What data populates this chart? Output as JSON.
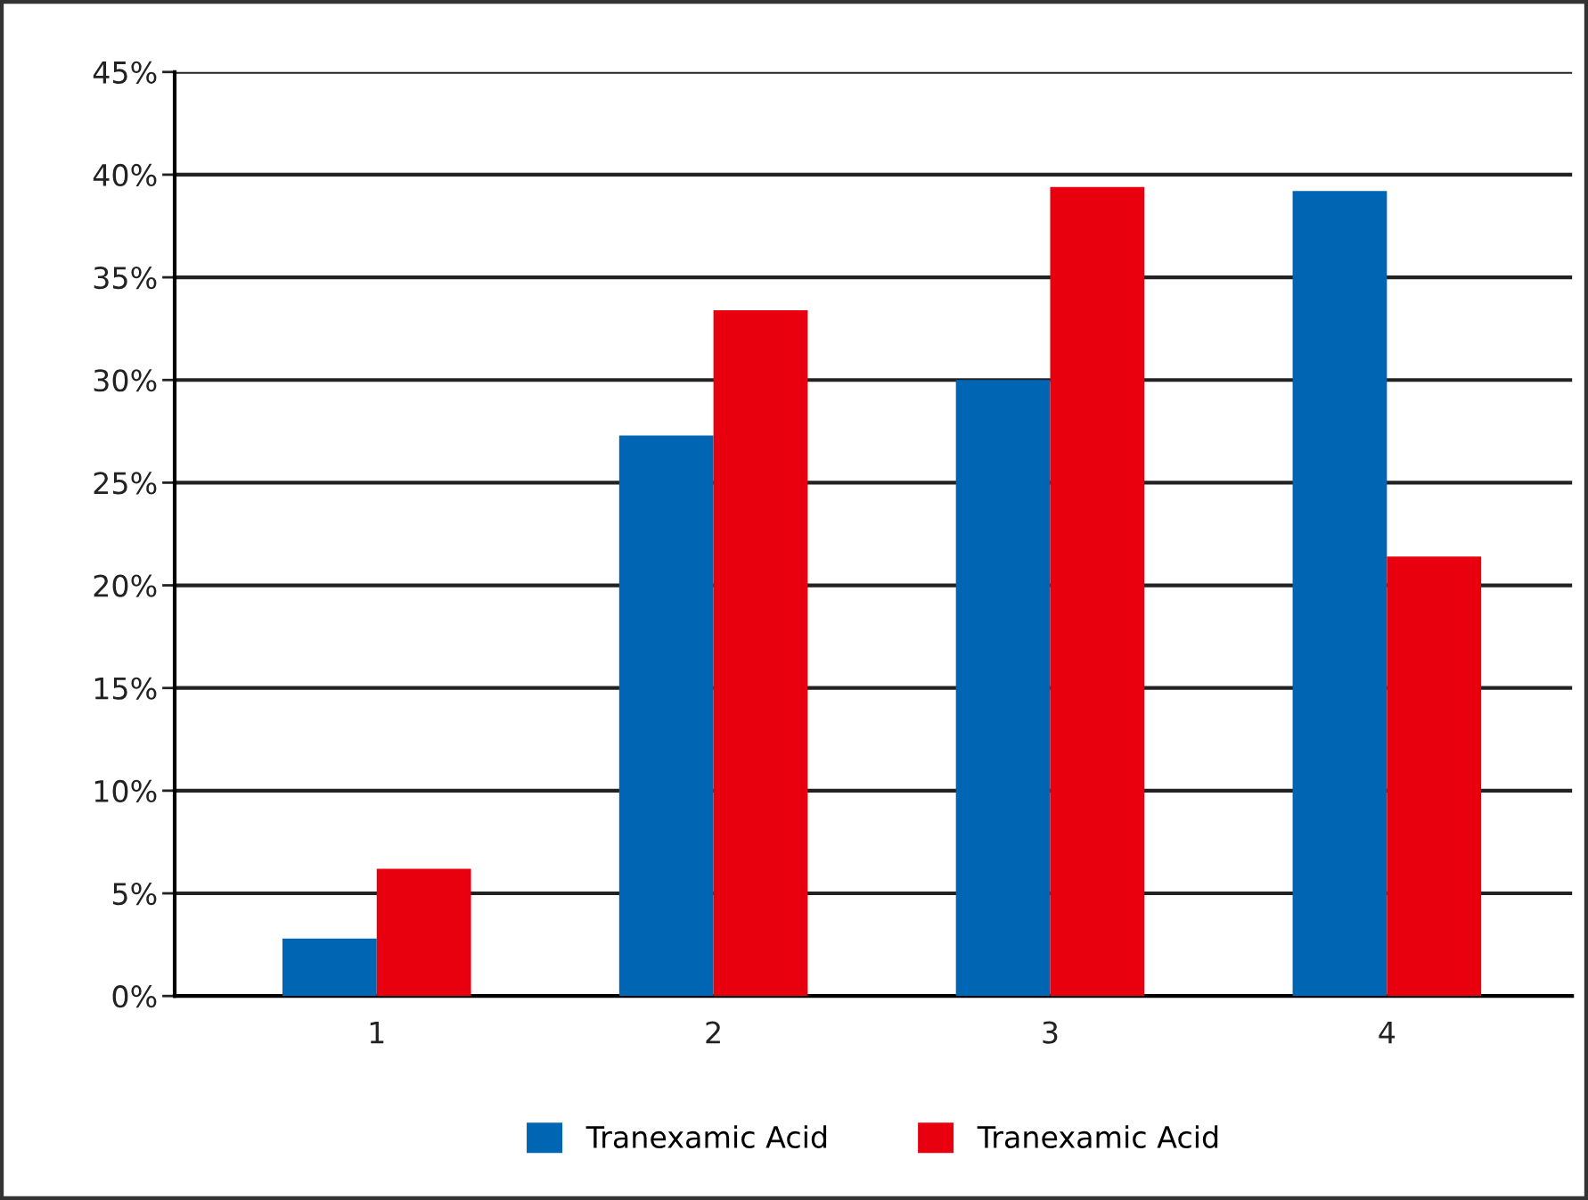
{
  "chart_data": {
    "type": "bar",
    "categories": [
      "1",
      "2",
      "3",
      "4"
    ],
    "series": [
      {
        "name": "Tranexamic Acid",
        "color": "#0066b3",
        "values": [
          2.8,
          27.3,
          30,
          39.2
        ]
      },
      {
        "name": "Tranexamic Acid",
        "color": "#e8000f",
        "values": [
          6.2,
          33.4,
          39.4,
          21.4
        ]
      }
    ],
    "ylim": [
      0,
      45
    ],
    "yticks": [
      {
        "value": 0,
        "label": "0%"
      },
      {
        "value": 5,
        "label": "5%"
      },
      {
        "value": 10,
        "label": "10%"
      },
      {
        "value": 15,
        "label": "15%"
      },
      {
        "value": 20,
        "label": "20%"
      },
      {
        "value": 25,
        "label": "25%"
      },
      {
        "value": 30,
        "label": "30%"
      },
      {
        "value": 35,
        "label": "35%"
      },
      {
        "value": 40,
        "label": "40%"
      },
      {
        "value": 45,
        "label": "45%"
      }
    ],
    "grid": "y",
    "legend": "bottom"
  }
}
